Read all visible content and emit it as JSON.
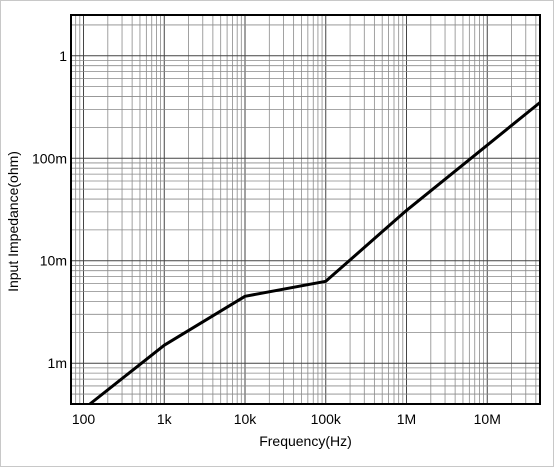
{
  "chart_data": {
    "type": "line",
    "title": "",
    "xlabel": "Frequency(Hz)",
    "ylabel": "Input Impedance(ohm)",
    "x_scale": "log",
    "y_scale": "log",
    "xlim": [
      70,
      45000000
    ],
    "ylim": [
      0.0004,
      2.5
    ],
    "grid": true,
    "x_ticks": [
      {
        "value": 100,
        "label": "100"
      },
      {
        "value": 1000,
        "label": "1k"
      },
      {
        "value": 10000,
        "label": "10k"
      },
      {
        "value": 100000,
        "label": "100k"
      },
      {
        "value": 1000000,
        "label": "1M"
      },
      {
        "value": 10000000,
        "label": "10M"
      }
    ],
    "y_ticks": [
      {
        "value": 0.001,
        "label": "1m"
      },
      {
        "value": 0.01,
        "label": "10m"
      },
      {
        "value": 0.1,
        "label": "100m"
      },
      {
        "value": 1,
        "label": "1"
      }
    ],
    "series": [
      {
        "color": "#000000",
        "x": [
          120,
          1000,
          10000,
          100000,
          1000000,
          45000000
        ],
        "y": [
          0.0004,
          0.0015,
          0.0045,
          0.0063,
          0.031,
          0.35
        ]
      }
    ]
  }
}
